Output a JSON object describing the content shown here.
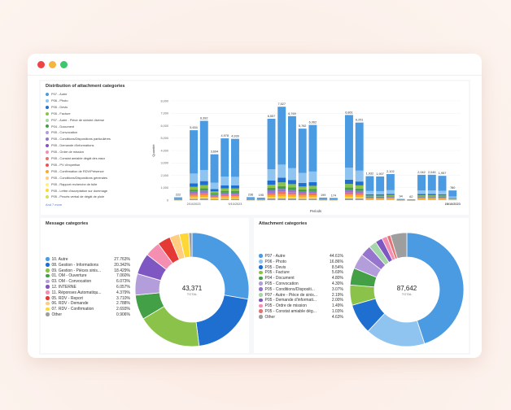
{
  "window": {
    "controls": [
      "close",
      "minimize",
      "maximize"
    ]
  },
  "colors": {
    "blue": "#4a9be2",
    "navy": "#1f6fd1",
    "green": "#8bc34a",
    "dkgreen": "#43a047",
    "purple": "#9575cd",
    "pink": "#e57373",
    "red": "#e53935",
    "yellow": "#fdd835",
    "orange": "#ffa726",
    "grey": "#9e9e9e",
    "lightblue": "#90c4f0"
  },
  "chart_data": [
    {
      "type": "bar",
      "title": "Distribution of attachment categories",
      "xlabel": "Periods",
      "ylabel": "Quantité",
      "ylim": [
        0,
        8000
      ],
      "yticks": [
        "0",
        "1,000",
        "2,000",
        "3,000",
        "4,000",
        "5,000",
        "6,000",
        "7,000",
        "8,000"
      ],
      "xticks": [
        {
          "label": "2/10/2023",
          "index": 3
        },
        {
          "label": "9/10/2023",
          "index": 18
        },
        {
          "label": "16/10/2023",
          "index": 33
        },
        {
          "label": "23/10/2023",
          "index": 48
        }
      ],
      "totals": [
        222,
        5634,
        6392,
        3694,
        4978,
        4939,
        236,
        195,
        6557,
        7527,
        6769,
        5762,
        6062,
        199,
        174,
        6861,
        6251,
        1932,
        1907,
        2102,
        94,
        62,
        2042,
        2045,
        1957,
        780
      ],
      "stack_shares": {
        "blue": 0.62,
        "lightblue": 0.14,
        "navy": 0.05,
        "green": 0.04,
        "dkgreen": 0.03,
        "purple": 0.03,
        "pink": 0.025,
        "orange": 0.025,
        "yellow": 0.02,
        "grey": 0.02
      },
      "legend": [
        {
          "label": "P07 - Autre",
          "color": "#4a9be2"
        },
        {
          "label": "P06 - Photo",
          "color": "#90c4f0"
        },
        {
          "label": "P05 - Devis",
          "color": "#1f6fd1"
        },
        {
          "label": "P05 - Facture",
          "color": "#8bc34a"
        },
        {
          "label": "P07 - Autre - Pièce de sinistre diverse",
          "color": "#a5d6a7"
        },
        {
          "label": "P04 - Document",
          "color": "#43a047"
        },
        {
          "label": "P05 - Convocation",
          "color": "#b39ddb"
        },
        {
          "label": "P05 - Conditions/Dispositions particulières",
          "color": "#9575cd"
        },
        {
          "label": "P05 - Demande d'informations",
          "color": "#7e57c2"
        },
        {
          "label": "P05 - Ordre de mission",
          "color": "#f48fb1"
        },
        {
          "label": "P05 - Constat amiable dégât des eaux",
          "color": "#e57373"
        },
        {
          "label": "P05 - PV d'expertise",
          "color": "#ef5350"
        },
        {
          "label": "P05 - Confirmation de RDV/Présence",
          "color": "#ffa726"
        },
        {
          "label": "P05 - Conditions/Dispositions générales",
          "color": "#ffcc80"
        },
        {
          "label": "P05 - Rapport recherche de fuite",
          "color": "#fff176"
        },
        {
          "label": "P05 - Lettre d'acceptation sur dommage",
          "color": "#fdd835"
        },
        {
          "label": "P05 - Procès verbal de dégât de pluie",
          "color": "#d4e157"
        }
      ],
      "more_link": "And 7 more"
    },
    {
      "type": "pie",
      "title": "Message categories",
      "total": "43,371",
      "total_label": "TOTAL",
      "slices": [
        {
          "label": "10. Autre",
          "pct": "27.763%",
          "value": 27.763,
          "color": "#4a9be2"
        },
        {
          "label": "08. Gestion - Informations",
          "pct": "20.342%",
          "value": 20.342,
          "color": "#1f6fd1"
        },
        {
          "label": "09. Gestion - Pièces sinis...",
          "pct": "18.429%",
          "value": 18.429,
          "color": "#8bc34a"
        },
        {
          "label": "01. OM - Ouverture",
          "pct": "7.060%",
          "value": 7.06,
          "color": "#43a047"
        },
        {
          "label": "03. OM - Convocation",
          "pct": "6.073%",
          "value": 6.073,
          "color": "#b39ddb"
        },
        {
          "label": "12. INTERNE",
          "pct": "6.057%",
          "value": 6.057,
          "color": "#7e57c2"
        },
        {
          "label": "11. Réponses Automatiqu...",
          "pct": "4.379%",
          "value": 4.379,
          "color": "#f48fb1"
        },
        {
          "label": "05. RDV - Report",
          "pct": "3.710%",
          "value": 3.71,
          "color": "#e53935"
        },
        {
          "label": "06. RDV - Demande",
          "pct": "2.788%",
          "value": 2.788,
          "color": "#ffcc80"
        },
        {
          "label": "07. RDV - Confirmation",
          "pct": "2.693%",
          "value": 2.693,
          "color": "#fdd835"
        },
        {
          "label": "Other",
          "pct": "0.906%",
          "value": 0.906,
          "color": "#9e9e9e"
        }
      ]
    },
    {
      "type": "pie",
      "title": "Attachment categories",
      "total": "87,642",
      "total_label": "TOTAL",
      "slices": [
        {
          "label": "P07 - Autre",
          "pct": "44.61%",
          "value": 44.61,
          "color": "#4a9be2"
        },
        {
          "label": "P06 - Photo",
          "pct": "16.86%",
          "value": 16.86,
          "color": "#90c4f0"
        },
        {
          "label": "P05 - Devis",
          "pct": "8.54%",
          "value": 8.54,
          "color": "#1f6fd1"
        },
        {
          "label": "P05 - Facture",
          "pct": "5.69%",
          "value": 5.69,
          "color": "#8bc34a"
        },
        {
          "label": "P04 - Document",
          "pct": "4.80%",
          "value": 4.8,
          "color": "#43a047"
        },
        {
          "label": "P05 - Convocation",
          "pct": "4.30%",
          "value": 4.3,
          "color": "#b39ddb"
        },
        {
          "label": "P05 - Conditions/Dispositi...",
          "pct": "3.07%",
          "value": 3.07,
          "color": "#9575cd"
        },
        {
          "label": "P07 - Autre - Pièce de sinis...",
          "pct": "2.19%",
          "value": 2.19,
          "color": "#a5d6a7"
        },
        {
          "label": "P05 - Demande d'informati...",
          "pct": "2.00%",
          "value": 2.0,
          "color": "#7e57c2"
        },
        {
          "label": "P05 - Ordre de mission",
          "pct": "1.49%",
          "value": 1.49,
          "color": "#f48fb1"
        },
        {
          "label": "P05 - Constat amiable dég...",
          "pct": "1.03%",
          "value": 1.03,
          "color": "#e57373"
        },
        {
          "label": "Other",
          "pct": "4.63%",
          "value": 4.63,
          "color": "#9e9e9e"
        }
      ]
    }
  ]
}
